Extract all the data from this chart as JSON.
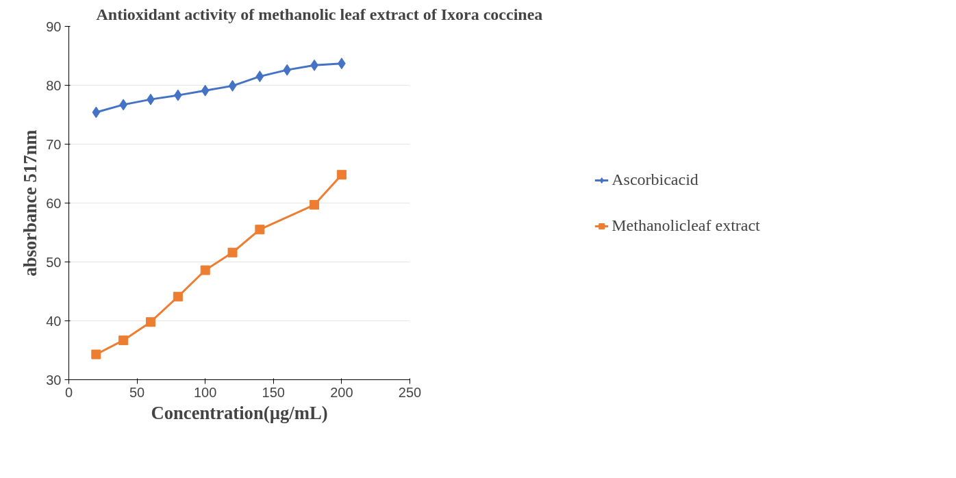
{
  "chart_data": {
    "type": "line",
    "title": "Antioxidant activity of methanolic leaf extract of Ixora coccinea",
    "xlabel": "Concentration(µg/mL)",
    "ylabel": "absorbance 517nm",
    "xlim": [
      0,
      250
    ],
    "xticks": [
      0,
      50,
      100,
      150,
      200,
      250
    ],
    "ylim": [
      30,
      90
    ],
    "yticks": [
      30,
      40,
      50,
      60,
      70,
      80,
      90
    ],
    "grid": "y",
    "legend": "right",
    "series": [
      {
        "name": "Ascorbicacid",
        "color": "#4472c4",
        "marker": "diamond",
        "x": [
          20,
          40,
          60,
          80,
          100,
          120,
          140,
          160,
          180,
          200
        ],
        "values": [
          75.4,
          76.7,
          77.6,
          78.3,
          79.1,
          79.9,
          81.5,
          82.6,
          83.4,
          83.7
        ]
      },
      {
        "name": "Methanolicleaf extract",
        "color": "#ed7d31",
        "marker": "square",
        "x": [
          20,
          40,
          60,
          80,
          100,
          120,
          140,
          180,
          200
        ],
        "values": [
          34.3,
          36.7,
          39.8,
          44.1,
          48.6,
          51.6,
          55.5,
          59.7,
          64.8
        ]
      }
    ]
  }
}
